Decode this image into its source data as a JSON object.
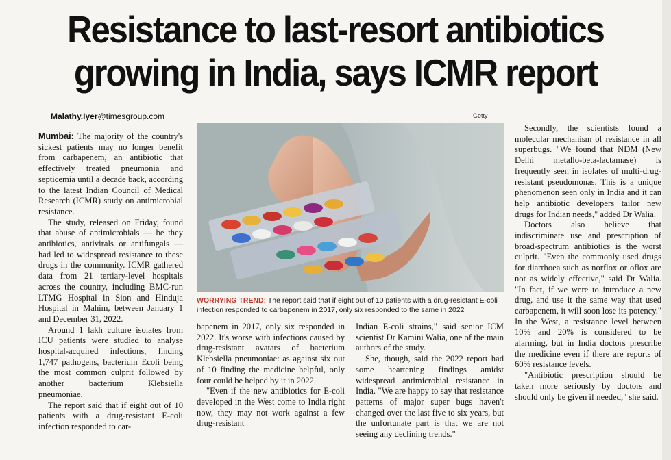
{
  "headline": {
    "line1": "Resistance to last-resort antibiotics",
    "line2": "growing in India, says ICMR report"
  },
  "byline": {
    "name": "Malathy.Iyer",
    "email_domain": "@timesgroup.com"
  },
  "photo": {
    "credit": "Getty"
  },
  "caption": {
    "kicker": "WORRYING TREND:",
    "text": " The report said that if eight out of 10 patients with a drug-resistant E-coli infection responded to carbapenem in 2017, only six responded to the same in 2022"
  },
  "article": {
    "col1": {
      "dateline": "Mumbai:",
      "p1": " The majority of the country's sickest patients may no longer benefit from carbapenem, an antibiotic that effectively treated pneumonia and septicemia until a decade back, according to the latest Indian Council of Medical Research (ICMR) study on antimicrobial resistance.",
      "p2": "The study, released on Friday, found that abuse of antimicrobials — be they antibiotics, antivirals or antifungals — had led to widespread resistance to these drugs in the community. ICMR gathered data from 21 tertiary-level hospitals across the country, including BMC-run LTMG Hospital in Sion and Hinduja Hospital in Mahim, between January 1 and December 31, 2022.",
      "p3": "Around 1 lakh culture isolates from ICU patients were studied to analyse hospital-acquired infections, finding 1,747 pathogens, bacterium Ecoli being the most common culprit followed by another bacterium Klebsiella pneumoniae.",
      "p4": "The report said that if eight out of 10 patients with a drug-resistant E-coli infection responded to car-"
    },
    "col2": {
      "p1": "bapenem in 2017, only six responded in 2022. It's worse with infections caused by drug-resistant avatars of bacterium Klebsiella pneumoniae: as against six out of 10 finding the medicine helpful, only four could be helped by it in 2022.",
      "p2": "\"Even if the new antibiotics for E-coli developed in the West come to India right now, they may not work against a few drug-resistant"
    },
    "col3": {
      "p1": "Indian E-coli strains,\" said senior ICM scientist Dr Kamini Walia, one of the main authors of the study.",
      "p2": "She, though, said the 2022 report had some heartening findings amidst widespread antimicrobial resistance in India. \"We are happy to say that resistance patterns of major super bugs haven't changed over the last five to six years, but the unfortunate part is that we are not seeing any declining trends.\""
    },
    "col4": {
      "p1": "Secondly, the scientists found a molecular mechanism of resistance in all superbugs. \"We found that NDM (New Delhi metallo-beta-lactamase) is frequently seen in isolates of multi-drug-resistant pseudomonas. This is a unique phenomenon seen only in India and it can help antibiotic developers tailor new drugs for Indian needs,\" added Dr Walia.",
      "p2": "Doctors also believe that indiscriminate use and prescription of broad-spectrum antibiotics is the worst culprit. \"Even the commonly used drugs for diarrhoea such as norflox or oflox are not as widely effective,\" said Dr Walia. \"In fact, if we were to introduce a new drug, and use it the same way that used carbapenem, it will soon lose its potency.\" In the West, a resistance level between 10% and 20% is considered to be alarming, but in India doctors prescribe the medicine even if there are reports of 60% resistance levels.",
      "p3": "\"Antibiotic prescription should be taken more seriously by doctors and should only be given if needed,\" she said."
    }
  }
}
